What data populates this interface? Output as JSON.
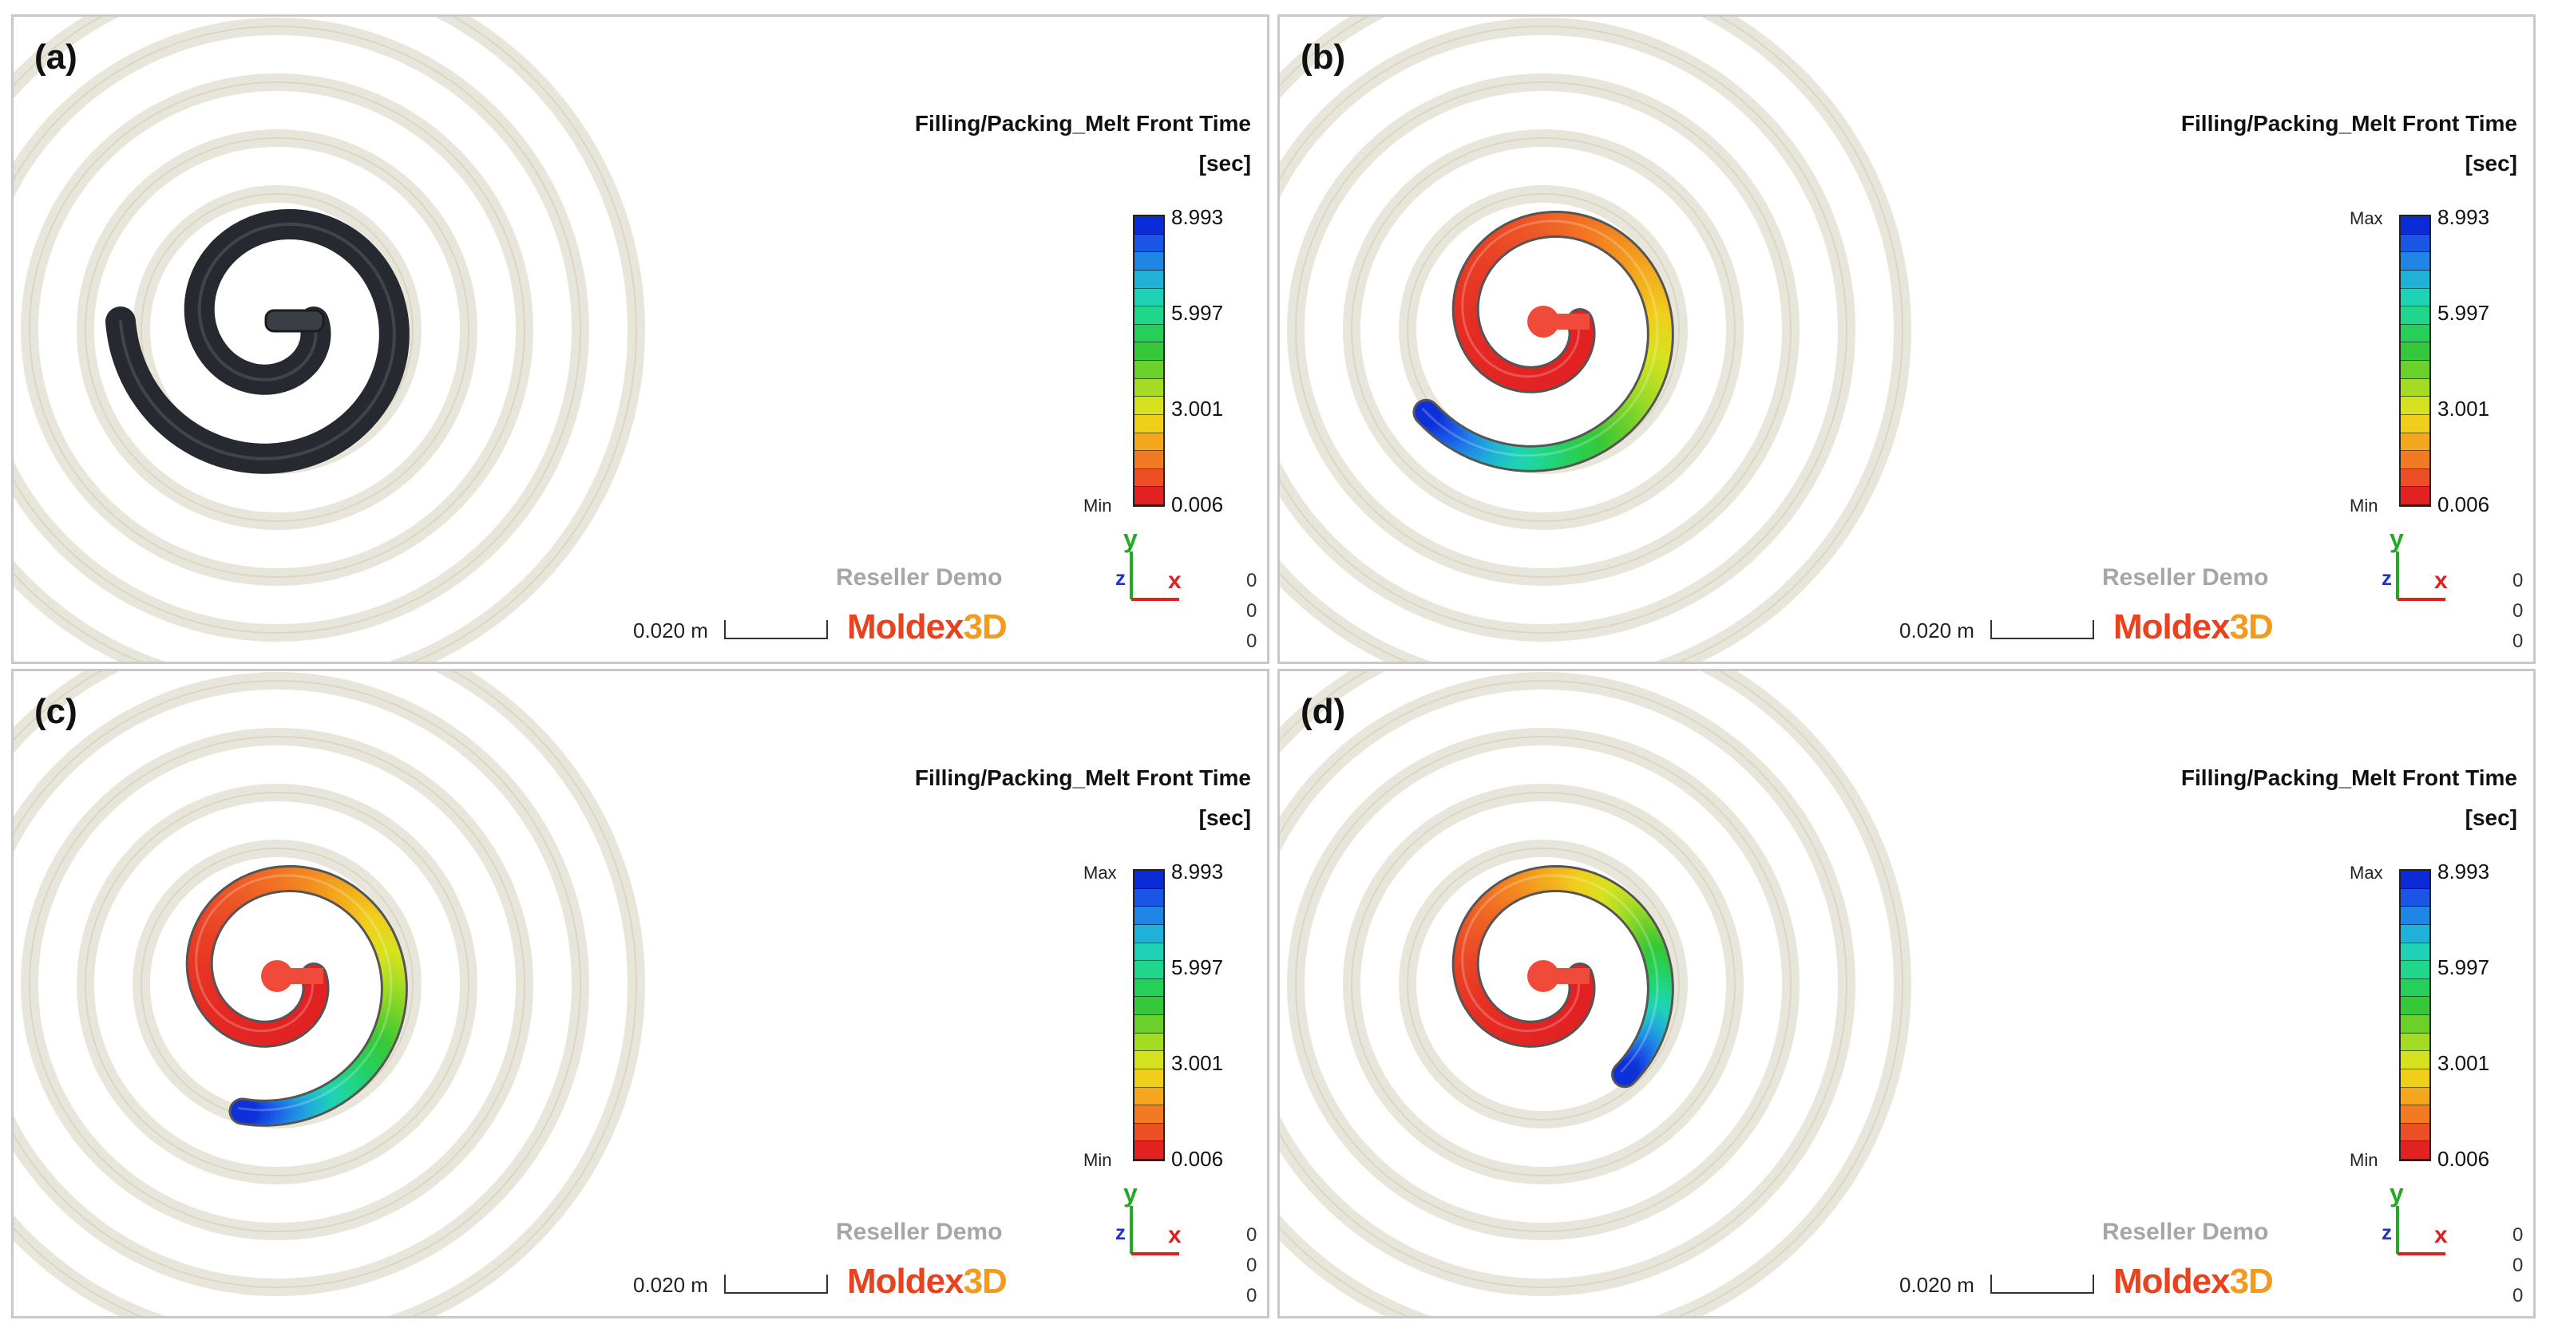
{
  "panels": [
    {
      "label": "(a)",
      "kind": "photo",
      "title": "Filling/Packing_Melt Front Time",
      "unit": "[sec]",
      "legend": {
        "max_value": "8.993",
        "mid_high": "5.997",
        "mid_low": "3.001",
        "min_value": "0.006",
        "max_marker": "",
        "min_marker": "Min"
      },
      "watermark": "Reseller Demo",
      "brand_main": "Moldex",
      "brand_suffix": "3D",
      "scale_label": "0.020 m",
      "axes": {
        "y": "y",
        "z": "z",
        "x": "x",
        "n1": "0",
        "n2": "0",
        "n3": "0"
      }
    },
    {
      "label": "(b)",
      "kind": "sim",
      "fill_progress": 0.93,
      "title": "Filling/Packing_Melt Front Time",
      "unit": "[sec]",
      "legend": {
        "max_value": "8.993",
        "mid_high": "5.997",
        "mid_low": "3.001",
        "min_value": "0.006",
        "max_marker": "Max",
        "min_marker": "Min"
      },
      "watermark": "Reseller Demo",
      "brand_main": "Moldex",
      "brand_suffix": "3D",
      "scale_label": "0.020 m",
      "axes": {
        "y": "y",
        "z": "z",
        "x": "x",
        "n1": "0",
        "n2": "0",
        "n3": "0"
      }
    },
    {
      "label": "(c)",
      "kind": "sim",
      "fill_progress": 0.86,
      "title": "Filling/Packing_Melt Front Time",
      "unit": "[sec]",
      "legend": {
        "max_value": "8.993",
        "mid_high": "5.997",
        "mid_low": "3.001",
        "min_value": "0.006",
        "max_marker": "Max",
        "min_marker": "Min"
      },
      "watermark": "Reseller Demo",
      "brand_main": "Moldex",
      "brand_suffix": "3D",
      "scale_label": "0.020 m",
      "axes": {
        "y": "y",
        "z": "z",
        "x": "x",
        "n1": "0",
        "n2": "0",
        "n3": "0"
      }
    },
    {
      "label": "(d)",
      "kind": "sim",
      "fill_progress": 0.76,
      "title": "Filling/Packing_Melt Front Time",
      "unit": "[sec]",
      "legend": {
        "max_value": "8.993",
        "mid_high": "5.997",
        "mid_low": "3.001",
        "min_value": "0.006",
        "max_marker": "Max",
        "min_marker": "Min"
      },
      "watermark": "Reseller Demo",
      "brand_main": "Moldex",
      "brand_suffix": "3D",
      "scale_label": "0.020 m",
      "axes": {
        "y": "y",
        "z": "z",
        "x": "x",
        "n1": "0",
        "n2": "0",
        "n3": "0"
      }
    }
  ],
  "colors": {
    "scale": [
      "#0b2bd6",
      "#1a55e6",
      "#1f86e6",
      "#1fb2d6",
      "#1fd2b6",
      "#1fd68a",
      "#27cf5a",
      "#36c83a",
      "#6bd02a",
      "#a4dc24",
      "#d6e21f",
      "#f0cf1c",
      "#f3a61e",
      "#f27a22",
      "#ec4e26",
      "#e22222"
    ],
    "photo_spiral": "#262a30",
    "mold_ring": "#d9d6c8",
    "label_y": "#22aa22",
    "label_x": "#dd2222",
    "label_z": "#2233cc"
  }
}
